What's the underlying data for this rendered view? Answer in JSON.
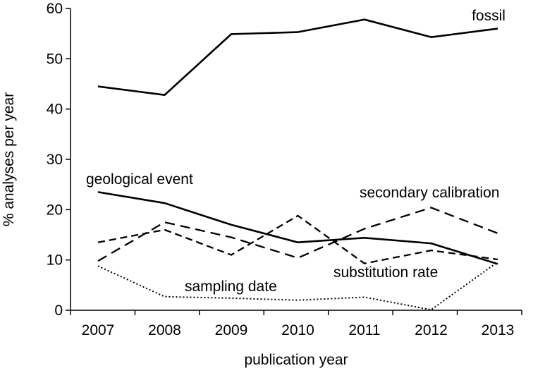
{
  "chart_data": {
    "type": "line",
    "title": "",
    "xlabel": "publication year",
    "ylabel": "% analyses per year",
    "categories": [
      "2007",
      "2008",
      "2009",
      "2010",
      "2011",
      "2012",
      "2013"
    ],
    "ylim": [
      0,
      60
    ],
    "yticks": [
      0,
      10,
      20,
      30,
      40,
      50,
      60
    ],
    "grid": false,
    "legend": "inline labels",
    "series": [
      {
        "name": "fossil",
        "style": "solid",
        "values": [
          44.5,
          42.8,
          54.9,
          55.3,
          57.8,
          54.3,
          56.0
        ]
      },
      {
        "name": "geological event",
        "style": "solid",
        "values": [
          23.5,
          21.3,
          17.0,
          13.5,
          14.4,
          13.3,
          9.2
        ]
      },
      {
        "name": "secondary calibration",
        "style": "long-dash",
        "values": [
          9.8,
          17.5,
          14.5,
          10.4,
          16.2,
          20.4,
          15.3
        ]
      },
      {
        "name": "substitution rate",
        "style": "dash",
        "values": [
          13.5,
          16.0,
          11.0,
          18.8,
          9.3,
          11.9,
          10.1
        ]
      },
      {
        "name": "sampling date",
        "style": "dotted",
        "values": [
          8.8,
          2.7,
          2.4,
          2.0,
          2.6,
          0.1,
          9.6
        ]
      }
    ],
    "colors": {
      "line": "#000000",
      "background": "#ffffff"
    }
  }
}
